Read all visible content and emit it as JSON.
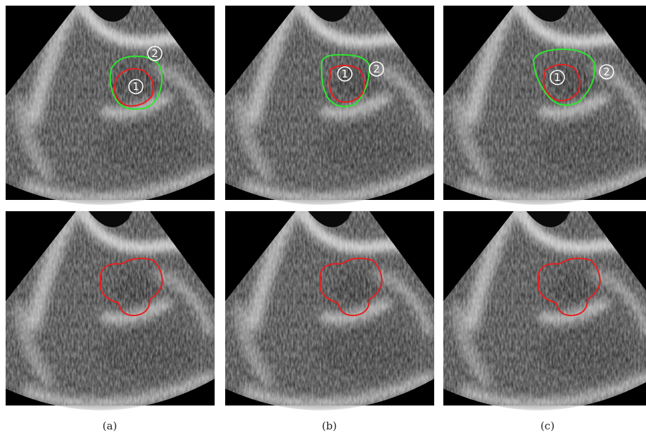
{
  "panels": [
    {
      "caption": "(a)",
      "markers": [
        "1",
        "2"
      ]
    },
    {
      "caption": "(b)",
      "markers": [
        "1",
        "2"
      ]
    },
    {
      "caption": "(c)",
      "markers": [
        "1",
        "2"
      ]
    }
  ]
}
